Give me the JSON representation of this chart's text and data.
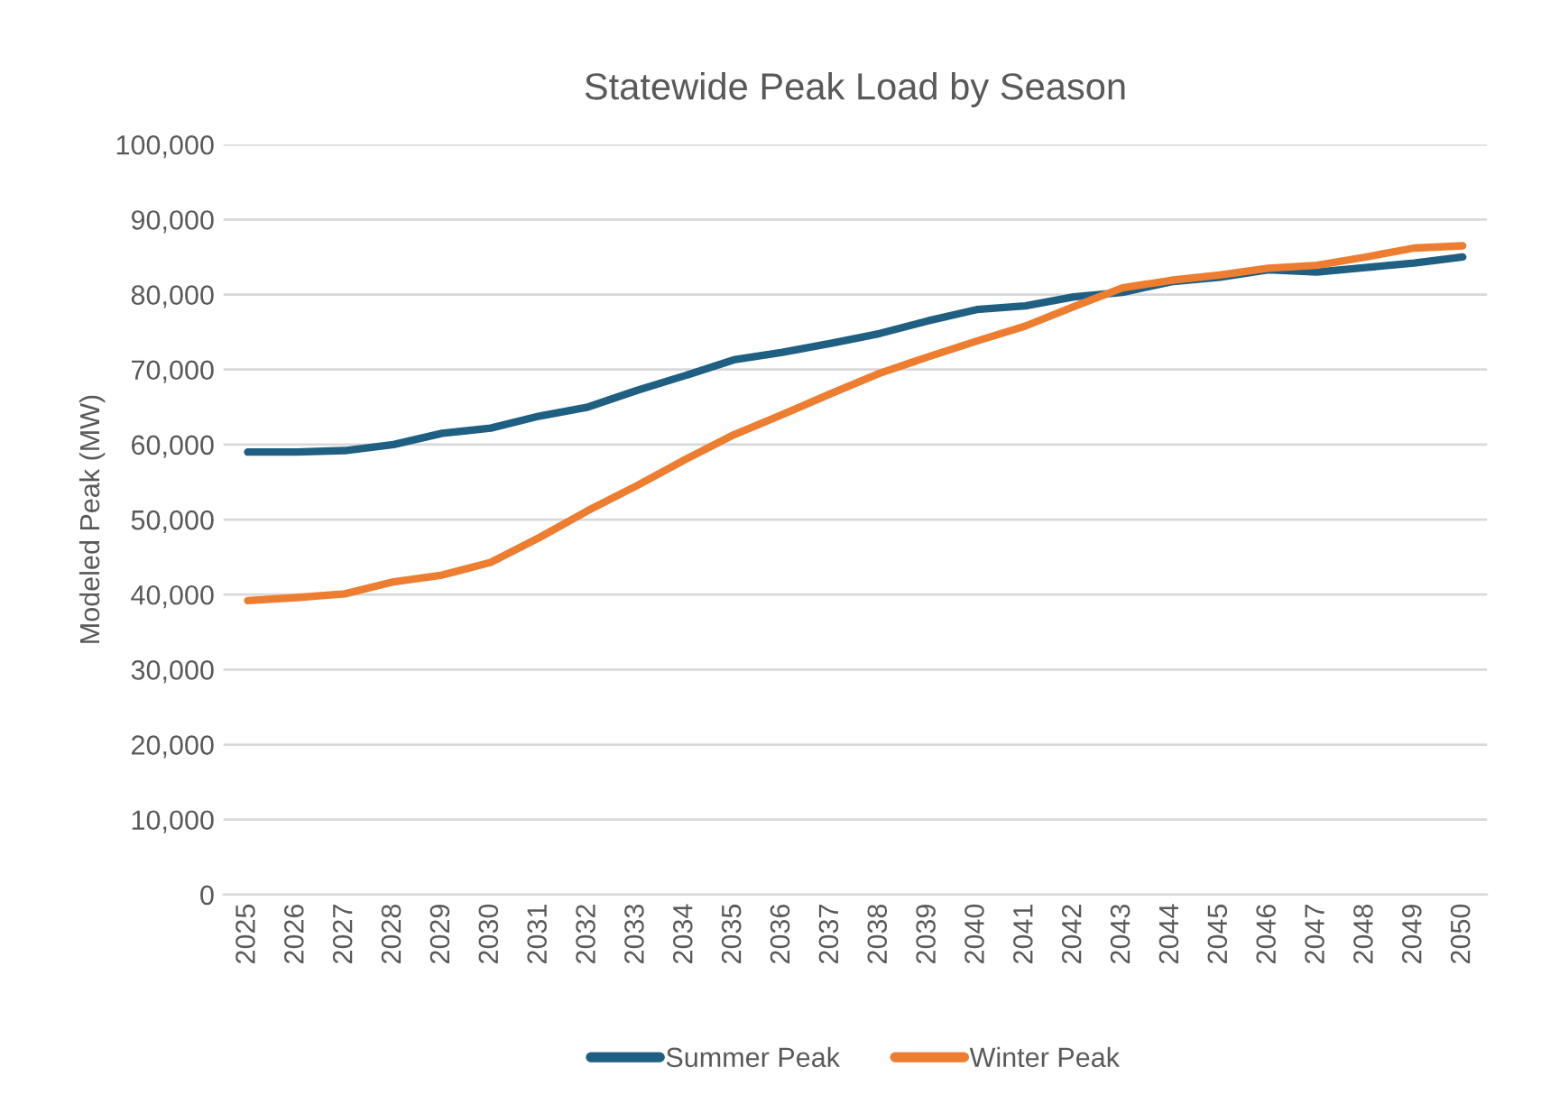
{
  "chart_data": {
    "type": "line",
    "title": "Statewide Peak Load by Season",
    "ylabel": "Modeled Peak (MW)",
    "categories": [
      "2025",
      "2026",
      "2027",
      "2028",
      "2029",
      "2030",
      "2031",
      "2032",
      "2033",
      "2034",
      "2035",
      "2036",
      "2037",
      "2038",
      "2039",
      "2040",
      "2041",
      "2042",
      "2043",
      "2044",
      "2045",
      "2046",
      "2047",
      "2048",
      "2049",
      "2050"
    ],
    "series": [
      {
        "name": "Summer Peak",
        "color": "#1f5f82",
        "values": [
          59000,
          59000,
          59200,
          60000,
          61500,
          62200,
          63800,
          65000,
          67200,
          69200,
          71300,
          72300,
          73500,
          74800,
          76500,
          78000,
          78500,
          79700,
          80300,
          81700,
          82300,
          83300,
          83000,
          83600,
          84200,
          85000
        ]
      },
      {
        "name": "Winter Peak",
        "color": "#ed7d31",
        "values": [
          39200,
          39600,
          40100,
          41700,
          42600,
          44300,
          47600,
          51200,
          54500,
          58000,
          61300,
          64000,
          66800,
          69500,
          71700,
          73800,
          75800,
          78400,
          80900,
          81900,
          82600,
          83500,
          83900,
          85000,
          86200,
          86500
        ]
      }
    ],
    "ylim": [
      0,
      100000
    ],
    "yticks": [
      {
        "value": 0,
        "label": "0"
      },
      {
        "value": 10000,
        "label": "10,000"
      },
      {
        "value": 20000,
        "label": "20,000"
      },
      {
        "value": 30000,
        "label": "30,000"
      },
      {
        "value": 40000,
        "label": "40,000"
      },
      {
        "value": 50000,
        "label": "50,000"
      },
      {
        "value": 60000,
        "label": "60,000"
      },
      {
        "value": 70000,
        "label": "70,000"
      },
      {
        "value": 80000,
        "label": "80,000"
      },
      {
        "value": 90000,
        "label": "90,000"
      },
      {
        "value": 100000,
        "label": "100,000"
      }
    ],
    "grid": "y",
    "legend": "bottom",
    "marker": "none",
    "line_style": "solid"
  }
}
